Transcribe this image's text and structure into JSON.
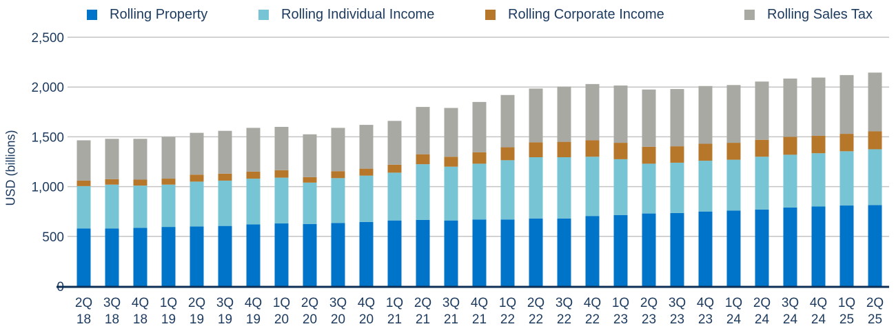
{
  "chart_data": {
    "type": "bar",
    "stacked": true,
    "title": "",
    "xlabel": "",
    "ylabel": "USD (billions)",
    "ylim": [
      0,
      2500
    ],
    "yticks": [
      0,
      500,
      1000,
      1500,
      2000,
      2500
    ],
    "ytick_labels": [
      "0",
      "500",
      "1,000",
      "1,500",
      "2,000",
      "2,500"
    ],
    "grid": true,
    "legend_position": "top",
    "categories": [
      [
        "2Q",
        "18"
      ],
      [
        "3Q",
        "18"
      ],
      [
        "4Q",
        "18"
      ],
      [
        "1Q",
        "19"
      ],
      [
        "2Q",
        "19"
      ],
      [
        "3Q",
        "19"
      ],
      [
        "4Q",
        "19"
      ],
      [
        "1Q",
        "20"
      ],
      [
        "2Q",
        "20"
      ],
      [
        "3Q",
        "20"
      ],
      [
        "4Q",
        "20"
      ],
      [
        "1Q",
        "21"
      ],
      [
        "2Q",
        "21"
      ],
      [
        "3Q",
        "21"
      ],
      [
        "4Q",
        "21"
      ],
      [
        "1Q",
        "22"
      ],
      [
        "2Q",
        "22"
      ],
      [
        "3Q",
        "22"
      ],
      [
        "4Q",
        "22"
      ],
      [
        "1Q",
        "23"
      ],
      [
        "2Q",
        "23"
      ],
      [
        "3Q",
        "23"
      ],
      [
        "4Q",
        "23"
      ],
      [
        "1Q",
        "24"
      ],
      [
        "2Q",
        "24"
      ],
      [
        "3Q",
        "24"
      ],
      [
        "4Q",
        "24"
      ],
      [
        "1Q",
        "25"
      ],
      [
        "2Q",
        "25"
      ]
    ],
    "series": [
      {
        "name": "Rolling Property",
        "color": "#0074c8",
        "values": [
          580,
          580,
          585,
          595,
          600,
          605,
          620,
          630,
          625,
          635,
          645,
          660,
          665,
          660,
          670,
          670,
          680,
          680,
          705,
          715,
          730,
          735,
          750,
          760,
          770,
          790,
          800,
          810,
          815
        ]
      },
      {
        "name": "Rolling Individual Income",
        "color": "#77c4d5",
        "values": [
          425,
          440,
          425,
          425,
          450,
          455,
          460,
          460,
          415,
          450,
          465,
          480,
          560,
          540,
          560,
          595,
          615,
          615,
          595,
          560,
          500,
          505,
          510,
          510,
          530,
          530,
          535,
          545,
          560
        ]
      },
      {
        "name": "Rolling Corporate Income",
        "color": "#b6772b",
        "values": [
          55,
          55,
          60,
          60,
          70,
          70,
          70,
          75,
          55,
          70,
          70,
          80,
          100,
          100,
          115,
          130,
          150,
          155,
          165,
          165,
          170,
          165,
          170,
          170,
          170,
          180,
          175,
          175,
          180
        ]
      },
      {
        "name": "Rolling Sales Tax",
        "color": "#a9a9a4",
        "values": [
          405,
          405,
          410,
          420,
          420,
          430,
          440,
          435,
          430,
          435,
          440,
          440,
          475,
          490,
          505,
          525,
          540,
          555,
          565,
          575,
          575,
          575,
          580,
          580,
          585,
          585,
          585,
          590,
          590
        ]
      }
    ]
  }
}
